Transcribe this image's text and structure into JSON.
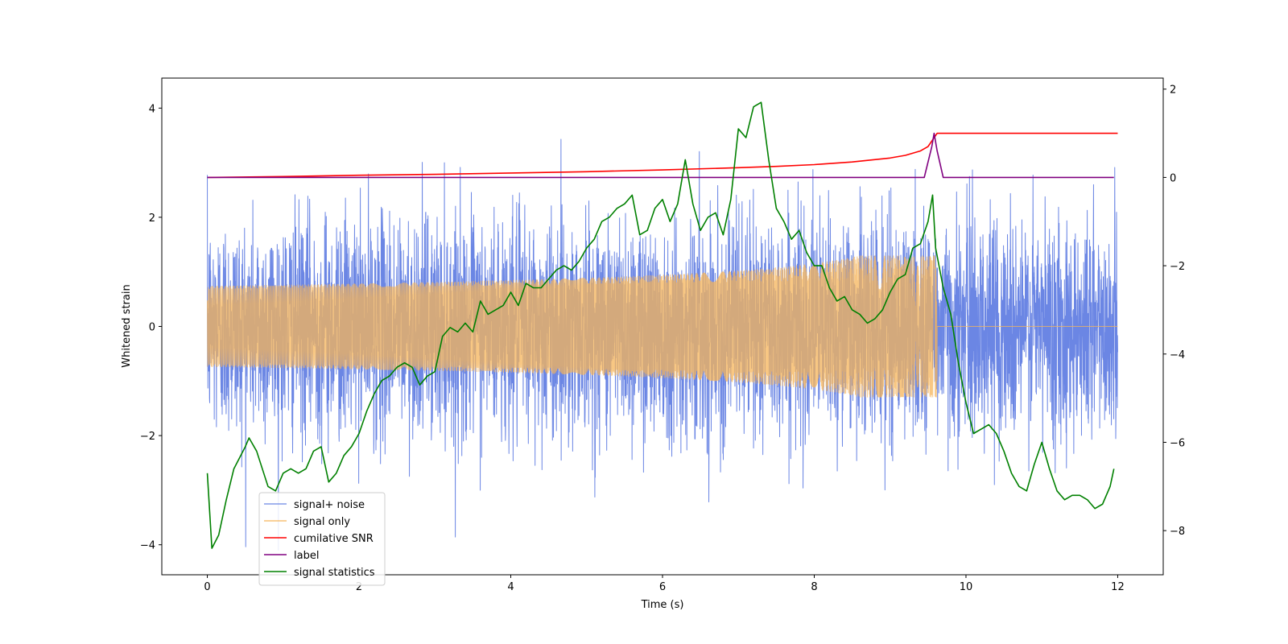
{
  "chart_data": {
    "type": "line",
    "title": "",
    "xlabel": "Time (s)",
    "ylabel": "Whitened strain",
    "y2label": "",
    "xlim": [
      -0.6,
      12.6
    ],
    "ylim": [
      -4.55,
      4.55
    ],
    "y2lim": [
      -9.0,
      2.25
    ],
    "xticks": [
      0,
      2,
      4,
      6,
      8,
      10,
      12
    ],
    "yticks": [
      -4,
      -2,
      0,
      2,
      4
    ],
    "y2ticks": [
      -8,
      -6,
      -4,
      -2,
      0,
      2
    ],
    "legend_location": "lower-left",
    "series": [
      {
        "name": "signal+ noise",
        "axis": "left",
        "color": "#6b86e4",
        "style": "gaussian-noise",
        "noise_std": 1.0,
        "noise_peak_limit": 4.1
      },
      {
        "name": "signal only",
        "axis": "left",
        "color": "#f5b45a",
        "style": "chirp",
        "chirp_start": 0.0,
        "chirp_merger": 9.62,
        "chirp_end": 12.0,
        "chirp_peak_amplitude": 1.3
      },
      {
        "name": "cumilative SNR",
        "axis": "right",
        "color": "#ff0000",
        "x": [
          0,
          1,
          2,
          3,
          4,
          5,
          6,
          7,
          7.5,
          8,
          8.5,
          9,
          9.2,
          9.4,
          9.5,
          9.6,
          9.62,
          12.0
        ],
        "y": [
          0.0,
          0.02,
          0.05,
          0.07,
          0.1,
          0.13,
          0.17,
          0.22,
          0.25,
          0.29,
          0.35,
          0.44,
          0.5,
          0.6,
          0.7,
          0.95,
          1.0,
          1.0
        ]
      },
      {
        "name": "label",
        "axis": "right",
        "color": "#800080",
        "x": [
          0,
          9.45,
          9.55,
          9.58,
          9.62,
          9.7,
          11.95
        ],
        "y": [
          0,
          0,
          0.7,
          1.0,
          0.6,
          0,
          0
        ]
      },
      {
        "name": "signal statistics",
        "axis": "right",
        "color": "#008000",
        "x": [
          0.0,
          0.06,
          0.15,
          0.25,
          0.35,
          0.5,
          0.55,
          0.65,
          0.8,
          0.9,
          1.0,
          1.1,
          1.2,
          1.3,
          1.4,
          1.5,
          1.6,
          1.7,
          1.8,
          1.9,
          2.0,
          2.1,
          2.2,
          2.3,
          2.4,
          2.5,
          2.6,
          2.7,
          2.8,
          2.9,
          3.0,
          3.1,
          3.2,
          3.3,
          3.4,
          3.5,
          3.6,
          3.7,
          3.8,
          3.9,
          4.0,
          4.1,
          4.2,
          4.3,
          4.4,
          4.5,
          4.6,
          4.7,
          4.8,
          4.9,
          5.0,
          5.1,
          5.2,
          5.3,
          5.4,
          5.5,
          5.6,
          5.7,
          5.8,
          5.9,
          6.0,
          6.1,
          6.2,
          6.3,
          6.4,
          6.5,
          6.6,
          6.7,
          6.8,
          6.9,
          7.0,
          7.1,
          7.2,
          7.3,
          7.4,
          7.5,
          7.6,
          7.7,
          7.8,
          7.9,
          8.0,
          8.1,
          8.2,
          8.3,
          8.4,
          8.5,
          8.6,
          8.7,
          8.8,
          8.9,
          9.0,
          9.1,
          9.2,
          9.3,
          9.4,
          9.5,
          9.56,
          9.6,
          9.7,
          9.8,
          9.9,
          10.0,
          10.1,
          10.2,
          10.3,
          10.4,
          10.5,
          10.6,
          10.7,
          10.8,
          10.9,
          11.0,
          11.1,
          11.2,
          11.3,
          11.4,
          11.5,
          11.6,
          11.7,
          11.8,
          11.9,
          11.95
        ],
        "y": [
          -6.7,
          -8.4,
          -8.1,
          -7.3,
          -6.6,
          -6.1,
          -5.9,
          -6.2,
          -7.0,
          -7.1,
          -6.7,
          -6.6,
          -6.7,
          -6.6,
          -6.2,
          -6.1,
          -6.9,
          -6.7,
          -6.3,
          -6.1,
          -5.8,
          -5.3,
          -4.9,
          -4.6,
          -4.5,
          -4.3,
          -4.2,
          -4.3,
          -4.7,
          -4.5,
          -4.4,
          -3.6,
          -3.4,
          -3.5,
          -3.3,
          -3.5,
          -2.8,
          -3.1,
          -3.0,
          -2.9,
          -2.6,
          -2.9,
          -2.4,
          -2.5,
          -2.5,
          -2.3,
          -2.1,
          -2.0,
          -2.1,
          -1.9,
          -1.6,
          -1.4,
          -1.0,
          -0.9,
          -0.7,
          -0.6,
          -0.4,
          -1.3,
          -1.2,
          -0.7,
          -0.5,
          -1.0,
          -0.6,
          0.4,
          -0.6,
          -1.2,
          -0.9,
          -0.8,
          -1.3,
          -0.5,
          1.1,
          0.9,
          1.6,
          1.7,
          0.4,
          -0.7,
          -1.0,
          -1.4,
          -1.2,
          -1.7,
          -2.0,
          -2.0,
          -2.5,
          -2.8,
          -2.7,
          -3.0,
          -3.1,
          -3.3,
          -3.2,
          -3.0,
          -2.6,
          -2.3,
          -2.2,
          -1.6,
          -1.5,
          -1.0,
          -0.4,
          -1.6,
          -2.5,
          -3.1,
          -4.2,
          -5.1,
          -5.8,
          -5.7,
          -5.6,
          -5.8,
          -6.2,
          -6.7,
          -7.0,
          -7.1,
          -6.5,
          -6.0,
          -6.6,
          -7.1,
          -7.3,
          -7.2,
          -7.2,
          -7.3,
          -7.5,
          -7.4,
          -7.0,
          -6.6
        ]
      }
    ]
  }
}
